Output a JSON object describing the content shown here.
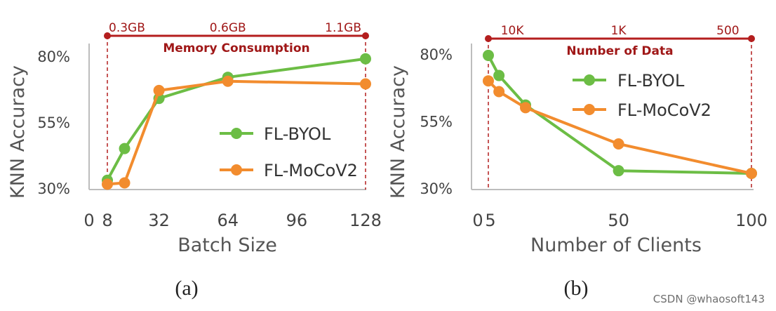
{
  "colors": {
    "byol": "#6cbd45",
    "mocov2": "#f28c2e",
    "memory": "#b41e1e",
    "axis": "#bdbdbd"
  },
  "watermark": "CSDN @whaosoft143",
  "chart_data": [
    {
      "type": "line",
      "caption": "(a)",
      "xlabel": "Batch Size",
      "ylabel": "KNN Accuracy",
      "xlim": [
        0,
        128
      ],
      "ylim": [
        30,
        80
      ],
      "xticks": [
        {
          "v": 0,
          "label": "0"
        },
        {
          "v": 8,
          "label": "8"
        },
        {
          "v": 32,
          "label": "32"
        },
        {
          "v": 64,
          "label": "64"
        },
        {
          "v": 96,
          "label": "96"
        },
        {
          "v": 128,
          "label": "128"
        }
      ],
      "yticks": [
        {
          "v": 30,
          "label": "30%"
        },
        {
          "v": 55,
          "label": "55%"
        },
        {
          "v": 80,
          "label": "80%"
        }
      ],
      "top_axis": {
        "title": "Memory Consumption",
        "ticks": [
          {
            "v": 8,
            "label": "0.3GB"
          },
          {
            "v": 64,
            "label": "0.6GB"
          },
          {
            "v": 128,
            "label": "1.1GB"
          }
        ],
        "dashed_at": [
          8,
          128
        ]
      },
      "legend_position": "right",
      "series": [
        {
          "name": "FL-BYOL",
          "key": "byol",
          "x": [
            8,
            16,
            32,
            64,
            128
          ],
          "y": [
            33,
            45,
            64,
            72,
            79
          ]
        },
        {
          "name": "FL-MoCoV2",
          "key": "mocov2",
          "x": [
            8,
            16,
            32,
            64,
            128
          ],
          "y": [
            31.5,
            32,
            67,
            70.5,
            69.5
          ]
        }
      ]
    },
    {
      "type": "line",
      "caption": "(b)",
      "xlabel": "Number of Clients",
      "ylabel": "KNN Accuracy",
      "xlim": [
        0,
        100
      ],
      "ylim": [
        30,
        80
      ],
      "xticks": [
        {
          "v": 0,
          "label": "0"
        },
        {
          "v": 5,
          "label": "5"
        },
        {
          "v": 50,
          "label": "50"
        },
        {
          "v": 100,
          "label": "100"
        }
      ],
      "yticks": [
        {
          "v": 30,
          "label": "30%"
        },
        {
          "v": 55,
          "label": "55%"
        },
        {
          "v": 80,
          "label": "80%"
        }
      ],
      "top_axis": {
        "title": "Number of Data",
        "ticks": [
          {
            "v": 1,
            "label": ""
          },
          {
            "v": 10,
            "label": "10K"
          },
          {
            "v": 50,
            "label": "1K"
          },
          {
            "v": 97,
            "label": "500"
          }
        ],
        "dashed_at": [
          1,
          100
        ]
      },
      "legend_position": "top-right",
      "series": [
        {
          "name": "FL-BYOL",
          "key": "byol",
          "x": [
            1,
            5,
            15,
            50,
            100
          ],
          "y": [
            79.5,
            72,
            61,
            36.5,
            35.5
          ]
        },
        {
          "name": "FL-MoCoV2",
          "key": "mocov2",
          "x": [
            1,
            5,
            15,
            50,
            100
          ],
          "y": [
            70,
            66,
            60,
            46.5,
            35.5
          ]
        }
      ]
    }
  ]
}
